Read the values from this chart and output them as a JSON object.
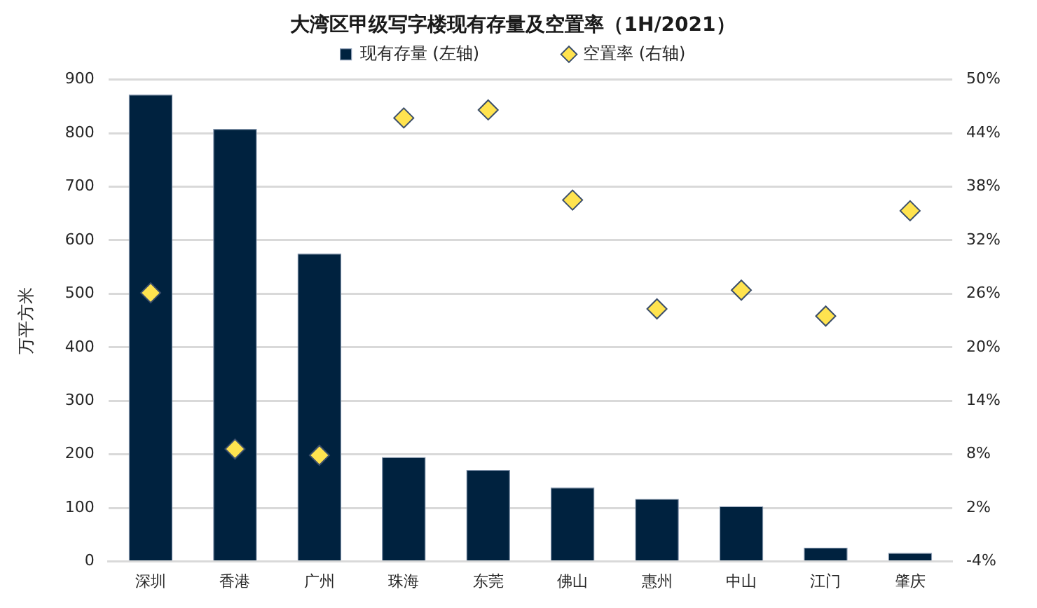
{
  "chart_data": {
    "type": "bar",
    "title": "大湾区甲级写字楼现有存量及空置率（1H/2021）",
    "ylabel": "万平方米",
    "categories": [
      "深圳",
      "香港",
      "广州",
      "珠海",
      "东莞",
      "佛山",
      "惠州",
      "中山",
      "江门",
      "肇庆"
    ],
    "series": [
      {
        "name": "现有存量 (左轴)",
        "color": "#00223f",
        "values": [
          872,
          808,
          575,
          195,
          171,
          138,
          117,
          103,
          26,
          16
        ]
      },
      {
        "name": "空置率 (右轴)",
        "type": "scatter",
        "axis": "y2",
        "color": "#ffe34f",
        "x": [
          "深圳",
          "香港",
          "广州",
          "珠海",
          "东莞",
          "佛山",
          "惠州",
          "中山",
          "江门",
          "肇庆"
        ],
        "values": [
          26.1,
          8.6,
          7.9,
          45.7,
          46.6,
          36.5,
          24.3,
          26.4,
          23.5,
          35.3
        ]
      }
    ],
    "ylim": [
      0,
      900
    ],
    "yticks": [
      0,
      100,
      200,
      300,
      400,
      500,
      600,
      700,
      800,
      900
    ],
    "y2lim": [
      -4,
      50
    ],
    "y2ticks": [
      {
        "value": -4,
        "label": "-4%"
      },
      {
        "value": 2,
        "label": "2%"
      },
      {
        "value": 8,
        "label": "8%"
      },
      {
        "value": 14,
        "label": "14%"
      },
      {
        "value": 20,
        "label": "20%"
      },
      {
        "value": 26,
        "label": "26%"
      },
      {
        "value": 32,
        "label": "32%"
      },
      {
        "value": 38,
        "label": "38%"
      },
      {
        "value": 44,
        "label": "44%"
      },
      {
        "value": 50,
        "label": "50%"
      }
    ],
    "grid": "y",
    "legend": "top",
    "marker": "diamond"
  }
}
